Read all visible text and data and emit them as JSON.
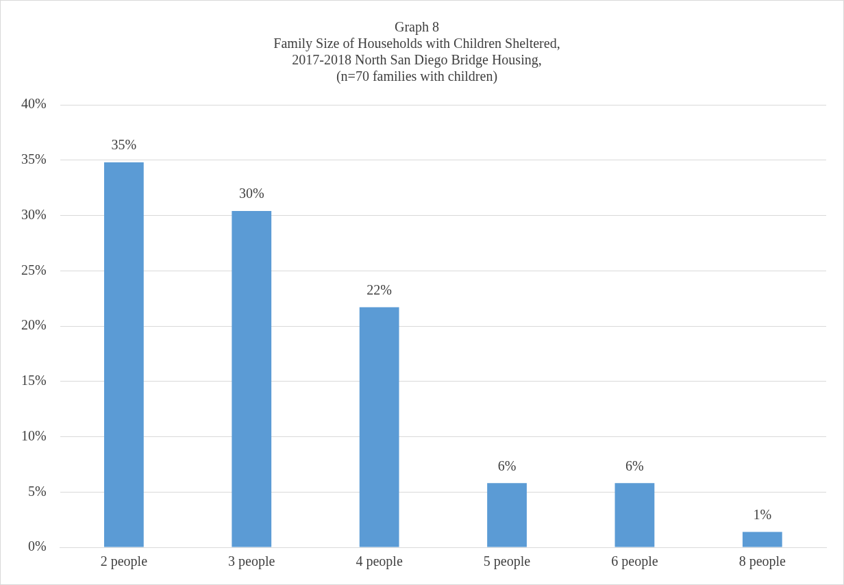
{
  "chart_data": {
    "type": "bar",
    "title": "Graph 8",
    "subtitle": "Family Size of Households with Children Sheltered,\n2017-2018 North San Diego Bridge Housing,\n(n=70 families with children)",
    "categories": [
      "2 people",
      "3 people",
      "4 people",
      "5 people",
      "6 people",
      "8 people"
    ],
    "values": [
      34.8,
      30.4,
      21.7,
      5.8,
      5.8,
      1.4
    ],
    "value_labels": [
      "35%",
      "30%",
      "22%",
      "6%",
      "6%",
      "1%"
    ],
    "color": "#5b9bd5",
    "ylim": [
      0,
      40
    ],
    "yticks": [
      {
        "value": 0,
        "label": "0%"
      },
      {
        "value": 5,
        "label": "5%"
      },
      {
        "value": 10,
        "label": "10%"
      },
      {
        "value": 15,
        "label": "15%"
      },
      {
        "value": 20,
        "label": "20%"
      },
      {
        "value": 25,
        "label": "25%"
      },
      {
        "value": 30,
        "label": "30%"
      },
      {
        "value": 35,
        "label": "35%"
      },
      {
        "value": 40,
        "label": "40%"
      }
    ],
    "grid": "y",
    "legend": false
  }
}
